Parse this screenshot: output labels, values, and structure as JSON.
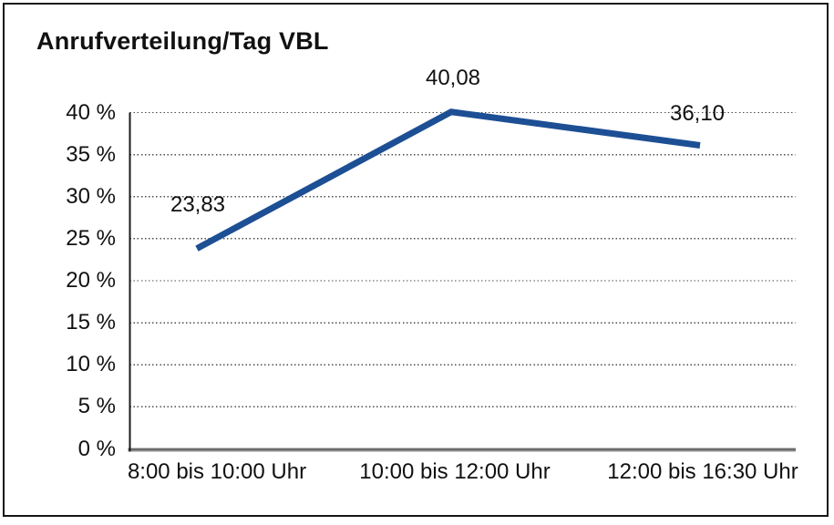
{
  "window": {
    "background_color": "#ffffff",
    "frame_border_color": "#161616"
  },
  "chart_data": {
    "type": "line",
    "title": "Anrufverteilung/Tag VBL",
    "categories": [
      "8:00 bis 10:00 Uhr",
      "10:00 bis 12:00 Uhr",
      "12:00 bis 16:30 Uhr"
    ],
    "values": [
      23.83,
      40.08,
      36.1
    ],
    "data_labels": [
      "23,83",
      "40,08",
      "36,10"
    ],
    "y_ticks": [
      0,
      5,
      10,
      15,
      20,
      25,
      30,
      35,
      40
    ],
    "y_tick_labels": [
      "0 %",
      "5 %",
      "10 %",
      "15 %",
      "20 %",
      "25 %",
      "30 %",
      "35 %",
      "40 %"
    ],
    "ylim": [
      0,
      40
    ],
    "xlabel": "",
    "ylabel": "",
    "legend": "none",
    "grid": "dotted horizontal gridlines at every 5 %",
    "line_color": "#1d4f94",
    "gridline_color": "#4d4d4d",
    "axis_color": "#1a1a1a",
    "baseline_color": "#8f8f8f",
    "text_color": "#111111"
  }
}
